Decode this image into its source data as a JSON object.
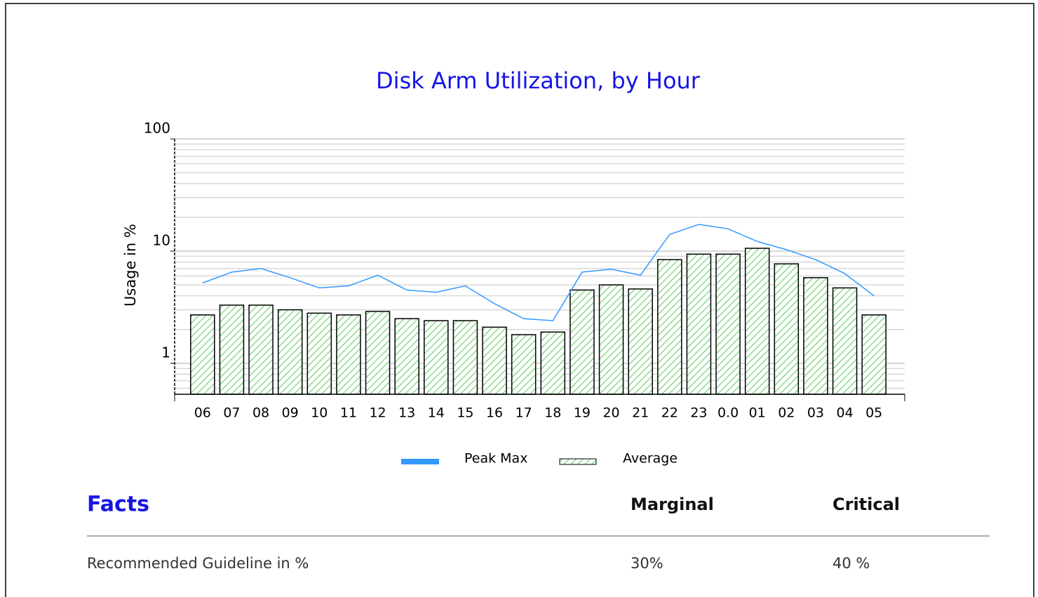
{
  "chart_data": {
    "type": "bar-line",
    "title": "Disk Arm Utilization, by Hour",
    "y_label": "Usage in %",
    "categories": [
      "06",
      "07",
      "08",
      "09",
      "10",
      "11",
      "12",
      "13",
      "14",
      "15",
      "16",
      "17",
      "18",
      "19",
      "20",
      "21",
      "22",
      "23",
      "0.0",
      "01",
      "02",
      "03",
      "04",
      "05"
    ],
    "series": [
      {
        "name": "Peak Max",
        "type": "line",
        "color": "#3399ff",
        "values": [
          5.2,
          6.5,
          7.0,
          5.8,
          4.7,
          4.9,
          6.1,
          4.5,
          4.3,
          4.9,
          3.4,
          2.5,
          2.4,
          6.5,
          6.9,
          6.1,
          14.1,
          17.3,
          15.8,
          12.2,
          10.3,
          8.4,
          6.3,
          4.0
        ]
      },
      {
        "name": "Average",
        "type": "bar",
        "color": "#66cc66",
        "values": [
          2.7,
          3.3,
          3.3,
          3.0,
          2.8,
          2.7,
          2.9,
          2.5,
          2.4,
          2.4,
          2.1,
          1.8,
          1.9,
          4.5,
          5.0,
          4.6,
          8.4,
          9.4,
          9.4,
          10.6,
          7.7,
          5.8,
          4.7,
          2.7
        ]
      }
    ],
    "ylim": [
      0.53,
      100
    ],
    "yticks": [
      1,
      10,
      100
    ],
    "log_scale": true,
    "grid": true,
    "legend": "bottom"
  },
  "facts": {
    "title": "Facts",
    "columns": [
      "Marginal",
      "Critical"
    ],
    "rows": [
      {
        "label": "Recommended Guideline in %",
        "cells": [
          "30%",
          "40 %"
        ]
      }
    ]
  }
}
